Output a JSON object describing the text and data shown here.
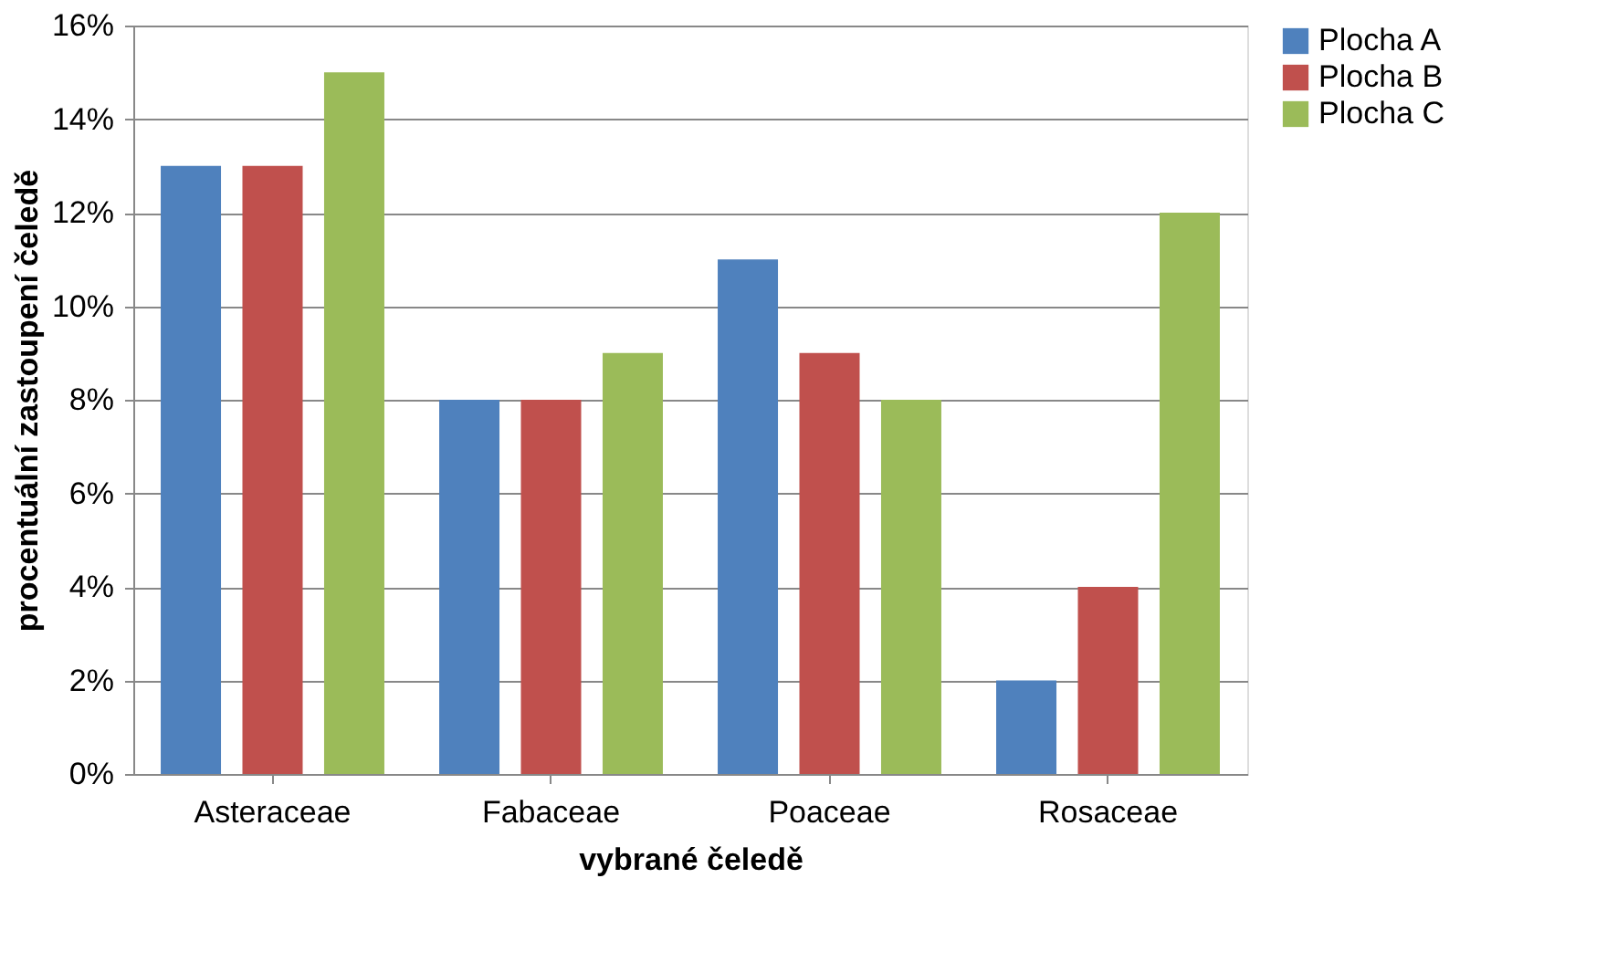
{
  "chart_data": {
    "type": "bar",
    "xlabel": "vybrané čeledě",
    "ylabel": "procentuální zastoupení čeledě",
    "categories": [
      "Asteraceae",
      "Fabaceae",
      "Poaceae",
      "Rosaceae"
    ],
    "series": [
      {
        "name": "Plocha A",
        "color": "#4f81bd",
        "values": [
          13,
          8,
          11,
          2
        ]
      },
      {
        "name": "Plocha B",
        "color": "#c0504d",
        "values": [
          13,
          8,
          9,
          4
        ]
      },
      {
        "name": "Plocha C",
        "color": "#9bbb59",
        "values": [
          15,
          9,
          8,
          12
        ]
      }
    ],
    "ylim": [
      0,
      16
    ],
    "yticks": [
      {
        "value": 0,
        "label": "0%"
      },
      {
        "value": 2,
        "label": "2%"
      },
      {
        "value": 4,
        "label": "4%"
      },
      {
        "value": 6,
        "label": "6%"
      },
      {
        "value": 8,
        "label": "8%"
      },
      {
        "value": 10,
        "label": "10%"
      },
      {
        "value": 12,
        "label": "12%"
      },
      {
        "value": 14,
        "label": "14%"
      },
      {
        "value": 16,
        "label": "16%"
      }
    ],
    "grid": "y",
    "legend": "right"
  }
}
